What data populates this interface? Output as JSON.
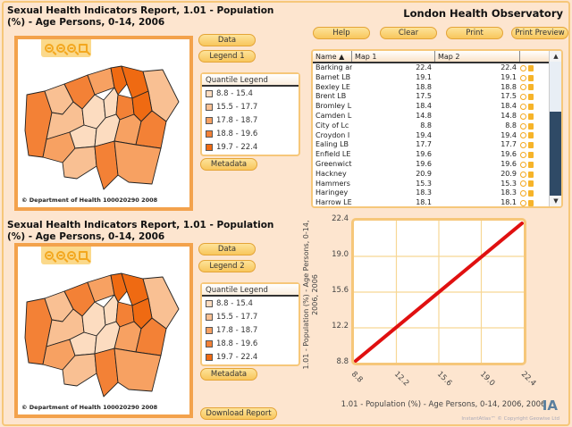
{
  "app_title": "London Health Observatory",
  "colors": {
    "background": "#fde5cf",
    "accent_border": "#f6c77a",
    "map_border": "#f3a24c",
    "button": "#f8c65c",
    "line": "#e01010",
    "scroll_thumb": "#2f4a66",
    "quantiles": [
      "#fcdcc0",
      "#f9c093",
      "#f7a162",
      "#f38136",
      "#ef6a12"
    ]
  },
  "toolbar": {
    "help": "Help",
    "clear": "Clear",
    "print": "Print",
    "print_preview": "Print Preview"
  },
  "map1": {
    "title": "Sexual Health Indicators Report, 1.01 - Population (%) - Age Persons, 0-14, 2006",
    "copyright": "© Department of Health 100020290 2008",
    "zoom_icons": [
      "zoom-in-icon",
      "zoom-out-icon",
      "zoom-extent-icon",
      "zoom-select-icon"
    ],
    "data_button": "Data",
    "legend_button": "Legend 1",
    "metadata_button": "Metadata",
    "legend": {
      "title": "Quantile Legend",
      "items": [
        "8.8 - 15.4",
        "15.5 - 17.7",
        "17.8 - 18.7",
        "18.8 - 19.6",
        "19.7 - 22.4"
      ]
    }
  },
  "map2": {
    "title": "Sexual Health Indicators Report, 1.01 - Population (%) - Age Persons, 0-14, 2006",
    "copyright": "© Department of Health 100020290 2008",
    "data_button": "Data",
    "legend_button": "Legend 2",
    "metadata_button": "Metadata",
    "download_button": "Download Report",
    "legend": {
      "title": "Quantile Legend",
      "items": [
        "8.8 - 15.4",
        "15.5 - 17.7",
        "17.8 - 18.7",
        "18.8 - 19.6",
        "19.7 - 22.4"
      ]
    }
  },
  "table": {
    "columns": [
      "Name ▲",
      "Map 1",
      "Map 2",
      ""
    ],
    "rows": [
      {
        "name": "Barking ar",
        "map1": "22.4",
        "map2": "22.4"
      },
      {
        "name": "Barnet LB",
        "map1": "19.1",
        "map2": "19.1"
      },
      {
        "name": "Bexley LE",
        "map1": "18.8",
        "map2": "18.8"
      },
      {
        "name": "Brent LB",
        "map1": "17.5",
        "map2": "17.5"
      },
      {
        "name": "Bromley L",
        "map1": "18.4",
        "map2": "18.4"
      },
      {
        "name": "Camden L",
        "map1": "14.8",
        "map2": "14.8"
      },
      {
        "name": "City of Lc",
        "map1": "8.8",
        "map2": "8.8"
      },
      {
        "name": "Croydon I",
        "map1": "19.4",
        "map2": "19.4"
      },
      {
        "name": "Ealing LB",
        "map1": "17.7",
        "map2": "17.7"
      },
      {
        "name": "Enfield LE",
        "map1": "19.6",
        "map2": "19.6"
      },
      {
        "name": "Greenwict",
        "map1": "19.6",
        "map2": "19.6"
      },
      {
        "name": "Hackney",
        "map1": "20.9",
        "map2": "20.9"
      },
      {
        "name": "Hammers",
        "map1": "15.3",
        "map2": "15.3"
      },
      {
        "name": "Haringey",
        "map1": "18.3",
        "map2": "18.3"
      },
      {
        "name": "Harrow LE",
        "map1": "18.1",
        "map2": "18.1"
      }
    ]
  },
  "scatter": {
    "ylabel": "1.01 - Population (%) - Age Persons, 0-14, 2006, 2006",
    "xlabel": "1.01 - Population (%) - Age Persons, 0-14, 2006, 2006",
    "yticks": [
      "22.4",
      "19.0",
      "15.6",
      "12.2",
      "8.8"
    ],
    "xticks": [
      "8.8",
      "12.2",
      "15.6",
      "19.0",
      "22.4"
    ]
  },
  "branding": {
    "logo": "IA",
    "text": "InstantAtlas™ © Copyright Geowise Ltd"
  }
}
